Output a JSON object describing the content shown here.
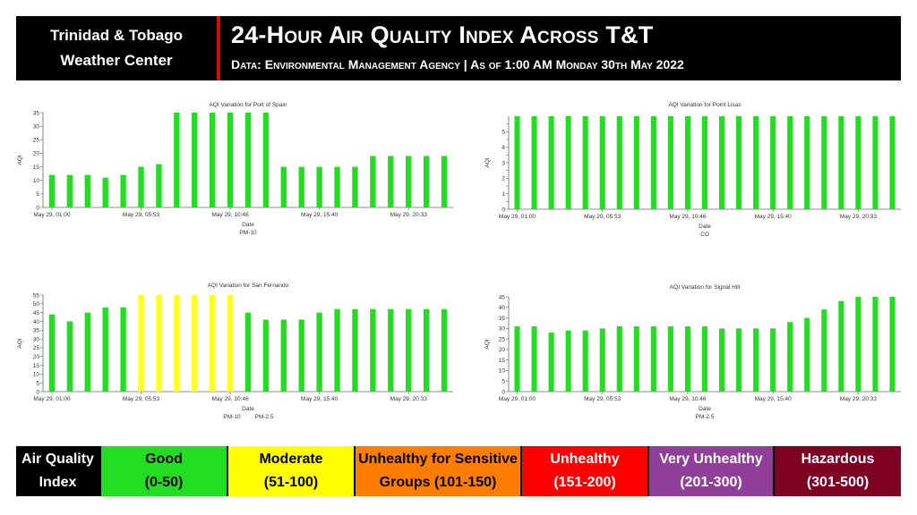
{
  "header": {
    "brand_line1": "Trinidad & Tobago",
    "brand_line2": "Weather Center",
    "title": "24-Hour Air Quality Index Across T&T",
    "subtitle": "Data: Environmental Management Agency | As of 1:00 AM Monday 30th May 2022"
  },
  "chart_data": [
    {
      "type": "bar",
      "title": "AQI Variation for Port of Spain",
      "xlabel": "Date",
      "ylabel": "AQI",
      "pollutants": [
        "PM-10"
      ],
      "xticks": [
        "May 29, 01:00",
        "May 29, 05:53",
        "May 29, 10:46",
        "May 29, 15:40",
        "May 29, 20:33"
      ],
      "ylim": [
        0,
        35
      ],
      "yticks": [
        0,
        5,
        10,
        15,
        20,
        25,
        30,
        35
      ],
      "values": [
        12,
        12,
        12,
        11,
        12,
        15,
        16,
        35,
        35,
        35,
        35,
        35,
        35,
        15,
        15,
        15,
        15,
        15,
        19,
        19,
        19,
        19,
        19
      ],
      "colors": [
        "g",
        "g",
        "g",
        "g",
        "g",
        "g",
        "g",
        "g",
        "g",
        "g",
        "g",
        "g",
        "g",
        "g",
        "g",
        "g",
        "g",
        "g",
        "g",
        "g",
        "g",
        "g",
        "g"
      ]
    },
    {
      "type": "bar",
      "title": "AQI Variation for Point Lisas",
      "xlabel": "Date",
      "ylabel": "AQI",
      "pollutants": [
        "CO"
      ],
      "xticks": [
        "May 29, 01:00",
        "May 29, 05:53",
        "May 29, 10:46",
        "May 29, 15:40",
        "May 29, 20:33"
      ],
      "ylim": [
        0,
        6
      ],
      "yticks": [
        0,
        0.5,
        1,
        1.5,
        2,
        2.5,
        3,
        3.5,
        4,
        4.5,
        5,
        5.5
      ],
      "ytick_labels": [
        "0",
        "",
        "1",
        "",
        "2",
        "",
        "3",
        "",
        "4",
        "",
        "5",
        ""
      ],
      "values": [
        6,
        6,
        6,
        6,
        6,
        6,
        6,
        6,
        6,
        6,
        6,
        6,
        6,
        6,
        6,
        6,
        6,
        6,
        6,
        6,
        6,
        6,
        6
      ],
      "colors": [
        "g",
        "g",
        "g",
        "g",
        "g",
        "g",
        "g",
        "g",
        "g",
        "g",
        "g",
        "g",
        "g",
        "g",
        "g",
        "g",
        "g",
        "g",
        "g",
        "g",
        "g",
        "g",
        "g"
      ]
    },
    {
      "type": "bar",
      "title": "AQI Variation for San Fernando",
      "xlabel": "Date",
      "ylabel": "AQI",
      "pollutants": [
        "PM-10",
        "PM-2.5"
      ],
      "xticks": [
        "May 29, 01:00",
        "May 29, 05:53",
        "May 29, 10:46",
        "May 29, 15:40",
        "May 29, 20:33"
      ],
      "ylim": [
        0,
        55
      ],
      "yticks": [
        0,
        5,
        10,
        15,
        20,
        25,
        30,
        35,
        40,
        45,
        50,
        55
      ],
      "values": [
        44,
        40,
        45,
        48,
        48,
        55,
        55,
        55,
        55,
        55,
        55,
        45,
        41,
        41,
        41,
        45,
        47,
        47,
        47,
        47,
        47,
        47,
        47
      ],
      "colors": [
        "g",
        "g",
        "g",
        "g",
        "g",
        "y",
        "y",
        "y",
        "y",
        "y",
        "y",
        "g",
        "g",
        "g",
        "g",
        "g",
        "g",
        "g",
        "g",
        "g",
        "g",
        "g",
        "g"
      ]
    },
    {
      "type": "bar",
      "title": "AQI Variation for Signal Hill",
      "xlabel": "Date",
      "ylabel": "AQI",
      "pollutants": [
        "PM-2.5"
      ],
      "xticks": [
        "May 29, 01:00",
        "May 29, 05:53",
        "May 29, 10:46",
        "May 29, 15:40",
        "May 29, 20:33"
      ],
      "ylim": [
        0,
        45
      ],
      "yticks": [
        0,
        5,
        10,
        15,
        20,
        25,
        30,
        35,
        40,
        45
      ],
      "values": [
        31,
        31,
        28,
        29,
        29,
        30,
        31,
        31,
        31,
        31,
        31,
        31,
        30,
        30,
        30,
        30,
        33,
        35,
        39,
        43,
        45,
        45,
        45
      ],
      "colors": [
        "g",
        "g",
        "g",
        "g",
        "g",
        "g",
        "g",
        "g",
        "g",
        "g",
        "g",
        "g",
        "g",
        "g",
        "g",
        "g",
        "g",
        "g",
        "g",
        "g",
        "g",
        "g",
        "g"
      ]
    }
  ],
  "legend": {
    "label_line1": "Air Quality",
    "label_line2": "Index",
    "items": [
      {
        "name": "Good",
        "range": "(0-50)",
        "color": "#22dd22",
        "text_color": "#000000"
      },
      {
        "name": "Moderate",
        "range": "(51-100)",
        "color": "#ffff00",
        "text_color": "#000000"
      },
      {
        "name": "Unhealthy for Sensitive",
        "range": "Groups (101-150)",
        "color": "#ff7e00",
        "text_color": "#000000"
      },
      {
        "name": "Unhealthy",
        "range": "(151-200)",
        "color": "#ff0000",
        "text_color": "#ffffff"
      },
      {
        "name": "Very Unhealthy",
        "range": "(201-300)",
        "color": "#8f3f97",
        "text_color": "#ffffff"
      },
      {
        "name": "Hazardous",
        "range": "(301-500)",
        "color": "#7e0023",
        "text_color": "#ffffff"
      }
    ]
  },
  "colors": {
    "g": "#22dd22",
    "y": "#ffff22"
  }
}
